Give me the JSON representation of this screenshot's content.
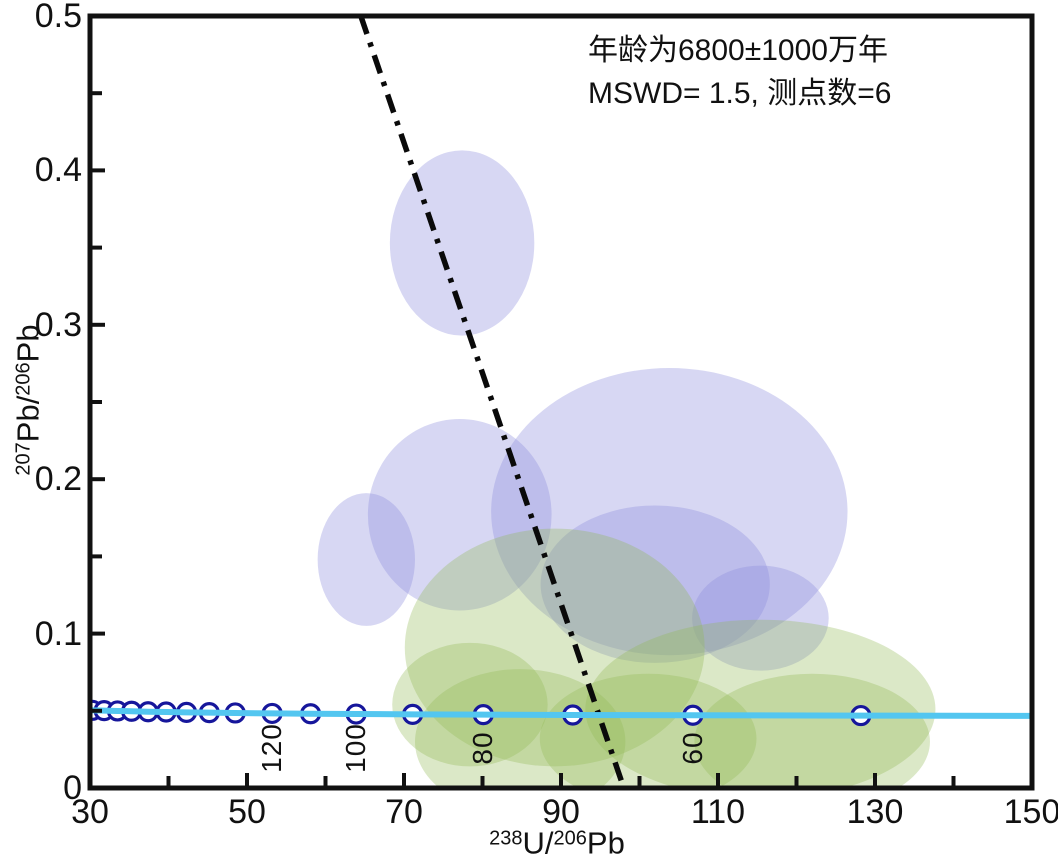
{
  "chart_data": {
    "type": "scatter",
    "subtype": "tera-wasserburg-concordia-diagram",
    "title": "",
    "xlabel": "238U/206Pb",
    "ylabel": "207Pb/206Pb",
    "xlim": [
      30,
      150
    ],
    "ylim": [
      0,
      0.5
    ],
    "grid": false,
    "x_major_ticks": [
      30,
      50,
      70,
      90,
      110,
      130,
      150
    ],
    "x_minor_ticks": [
      40,
      60,
      80,
      100,
      120,
      140
    ],
    "y_major_ticks": [
      0,
      0.1,
      0.2,
      0.3,
      0.4,
      0.5
    ],
    "y_minor_ticks": [
      0.05,
      0.15,
      0.25,
      0.35,
      0.45
    ],
    "annotation": [
      "年龄为6800±1000万年",
      "MSWD= 1.5, 测点数=6"
    ],
    "x_title_segments": [
      {
        "sup": "238"
      },
      {
        "t": "U/"
      },
      {
        "sup": "206"
      },
      {
        "t": "Pb"
      }
    ],
    "y_title_segments": [
      {
        "sup": "207"
      },
      {
        "t": "Pb/"
      },
      {
        "sup": "206"
      },
      {
        "t": "Pb"
      }
    ],
    "concordia": {
      "color": "#53c6f0",
      "line_width": 6,
      "start": {
        "x": 30,
        "y": 0.0506
      },
      "end": {
        "x": 150,
        "y": 0.0467
      },
      "markers": [
        {
          "age": 220,
          "x": 28.9,
          "y": 0.0505
        },
        {
          "age": 210,
          "x": 30.3,
          "y": 0.0503
        },
        {
          "age": 200,
          "x": 31.8,
          "y": 0.0501
        },
        {
          "age": 190,
          "x": 33.5,
          "y": 0.0499
        },
        {
          "age": 180,
          "x": 35.3,
          "y": 0.0497
        },
        {
          "age": 170,
          "x": 37.4,
          "y": 0.0494
        },
        {
          "age": 160,
          "x": 39.7,
          "y": 0.0492
        },
        {
          "age": 150,
          "x": 42.3,
          "y": 0.049
        },
        {
          "age": 140,
          "x": 45.2,
          "y": 0.0488
        },
        {
          "age": 130,
          "x": 48.5,
          "y": 0.0486
        },
        {
          "age": 120,
          "x": 53.2,
          "y": 0.0483
        },
        {
          "age": 110,
          "x": 58.1,
          "y": 0.0481
        },
        {
          "age": 100,
          "x": 63.9,
          "y": 0.0479
        },
        {
          "age": 90,
          "x": 71.1,
          "y": 0.0477
        },
        {
          "age": 80,
          "x": 80.1,
          "y": 0.0475
        },
        {
          "age": 70,
          "x": 91.5,
          "y": 0.0473
        },
        {
          "age": 60,
          "x": 106.8,
          "y": 0.0471
        },
        {
          "age": 50,
          "x": 128.2,
          "y": 0.0469
        }
      ],
      "labeled_ages": [
        {
          "label": "120",
          "x": 53.2
        },
        {
          "label": "100",
          "x": 63.9
        },
        {
          "label": "80",
          "x": 80.1
        },
        {
          "label": "60",
          "x": 106.8
        }
      ]
    },
    "discordia": {
      "style": "dash-dot",
      "color": "#0a0a0a",
      "line_width": 5.5,
      "p1": {
        "x": 64.5,
        "y": 0.5
      },
      "p2": {
        "x": 97.8,
        "y": 0.003
      }
    },
    "ellipses_blue": [
      {
        "cx": 103.8,
        "cy": 0.179,
        "rx": 22.7,
        "ry": 0.093
      },
      {
        "cx": 102.0,
        "cy": 0.132,
        "rx": 14.6,
        "ry": 0.051
      },
      {
        "cx": 115.4,
        "cy": 0.11,
        "rx": 8.7,
        "ry": 0.034
      },
      {
        "cx": 77.1,
        "cy": 0.177,
        "rx": 11.7,
        "ry": 0.062
      },
      {
        "cx": 65.2,
        "cy": 0.148,
        "rx": 6.2,
        "ry": 0.043
      },
      {
        "cx": 77.4,
        "cy": 0.353,
        "rx": 9.2,
        "ry": 0.06
      }
    ],
    "ellipses_green": [
      {
        "cx": 89.2,
        "cy": 0.091,
        "rx": 19.1,
        "ry": 0.077
      },
      {
        "cx": 115.4,
        "cy": 0.051,
        "rx": 22.3,
        "ry": 0.058
      },
      {
        "cx": 78.4,
        "cy": 0.054,
        "rx": 9.9,
        "ry": 0.04
      },
      {
        "cx": 84.8,
        "cy": 0.03,
        "rx": 13.4,
        "ry": 0.047
      },
      {
        "cx": 101.1,
        "cy": 0.032,
        "rx": 13.8,
        "ry": 0.042
      },
      {
        "cx": 122.0,
        "cy": 0.03,
        "rx": 15.0,
        "ry": 0.044
      }
    ],
    "colors": {
      "blue_ellipse_fill": "rgba(140,140,220,0.35)",
      "green_ellipse_fill": "rgba(145,185,85,0.33)",
      "concordia_line": "#53c6f0",
      "marker_stroke": "#16169b",
      "marker_fill": "#ffffff",
      "axis": "#111111"
    }
  }
}
